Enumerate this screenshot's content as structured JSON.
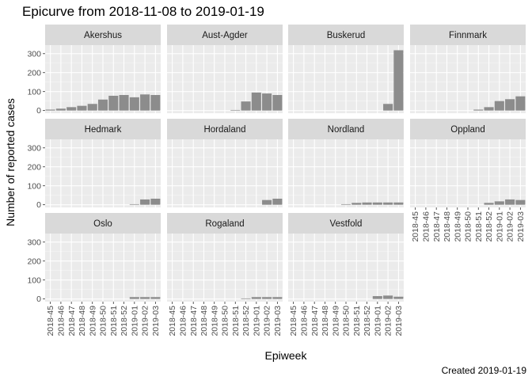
{
  "chart_data": {
    "type": "bar",
    "title": "Epicurve from 2018-11-08 to 2019-01-19",
    "xlabel": "Epiweek",
    "ylabel": "Number of reported cases",
    "caption": "Created 2019-01-19",
    "ylim": [
      0,
      330
    ],
    "yticks": [
      0,
      100,
      200,
      300
    ],
    "bar_color": "#8c8c8c",
    "panel_background": "#ebebeb",
    "strip_background": "#d9d9d9",
    "grid": true,
    "categories": [
      "2018-45",
      "2018-46",
      "2018-47",
      "2018-48",
      "2018-49",
      "2018-50",
      "2018-51",
      "2018-52",
      "2019-01",
      "2019-02",
      "2019-03"
    ],
    "facets": [
      {
        "name": "Akershus",
        "values": [
          5,
          10,
          18,
          25,
          35,
          58,
          78,
          82,
          70,
          85,
          82
        ]
      },
      {
        "name": "Aust-Agder",
        "values": [
          0,
          0,
          0,
          0,
          0,
          0,
          3,
          48,
          95,
          90,
          82
        ]
      },
      {
        "name": "Buskerud",
        "values": [
          0,
          0,
          0,
          0,
          0,
          0,
          0,
          0,
          0,
          35,
          318
        ]
      },
      {
        "name": "Finnmark",
        "values": [
          0,
          0,
          0,
          0,
          0,
          0,
          5,
          18,
          50,
          60,
          75
        ]
      },
      {
        "name": "Hedmark",
        "values": [
          0,
          0,
          0,
          0,
          0,
          0,
          0,
          0,
          3,
          28,
          32
        ]
      },
      {
        "name": "Hordaland",
        "values": [
          0,
          0,
          0,
          0,
          0,
          0,
          0,
          0,
          0,
          25,
          32
        ]
      },
      {
        "name": "Nordland",
        "values": [
          0,
          0,
          0,
          0,
          0,
          3,
          10,
          12,
          12,
          12,
          12
        ]
      },
      {
        "name": "Oppland",
        "values": [
          0,
          0,
          0,
          0,
          0,
          0,
          0,
          10,
          18,
          28,
          25
        ]
      },
      {
        "name": "Oslo",
        "values": [
          0,
          0,
          0,
          0,
          0,
          0,
          0,
          0,
          10,
          10,
          10
        ]
      },
      {
        "name": "Rogaland",
        "values": [
          0,
          0,
          0,
          0,
          0,
          0,
          0,
          3,
          10,
          10,
          10
        ]
      },
      {
        "name": "Vestfold",
        "values": [
          0,
          0,
          0,
          0,
          0,
          0,
          0,
          0,
          15,
          18,
          12
        ]
      }
    ]
  }
}
